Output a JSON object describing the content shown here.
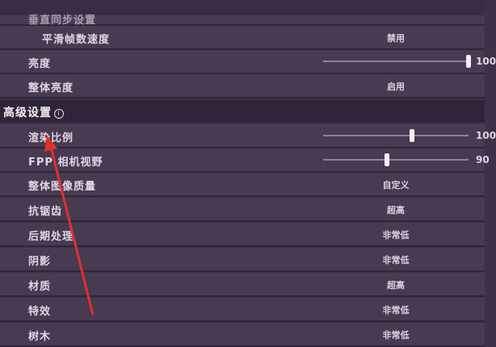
{
  "partial_row": {
    "label": "垂直同步设置"
  },
  "display_rows": [
    {
      "label": "平滑帧数速度",
      "value": "禁用",
      "indent": true
    },
    {
      "label": "亮度",
      "slider": 1.0,
      "number": "100"
    },
    {
      "label": "整体亮度",
      "value": "启用"
    }
  ],
  "advanced": {
    "title": "高级设置",
    "info_icon": "info-circle-icon",
    "rows": [
      {
        "label": "渲染比例",
        "slider": 0.61,
        "number": "100"
      },
      {
        "label": "FPP 相机视野",
        "slider": 0.44,
        "number": "90"
      },
      {
        "label": "整体图像质量",
        "value": "自定义"
      },
      {
        "label": "抗锯齿",
        "value": "超高"
      },
      {
        "label": "后期处理",
        "value": "非常低"
      },
      {
        "label": "阴影",
        "value": "非常低"
      },
      {
        "label": "材质",
        "value": "超高"
      },
      {
        "label": "特效",
        "value": "非常低"
      },
      {
        "label": "树木",
        "value": "非常低"
      }
    ]
  },
  "annotation": {
    "arrow_color": "#e0302c"
  }
}
